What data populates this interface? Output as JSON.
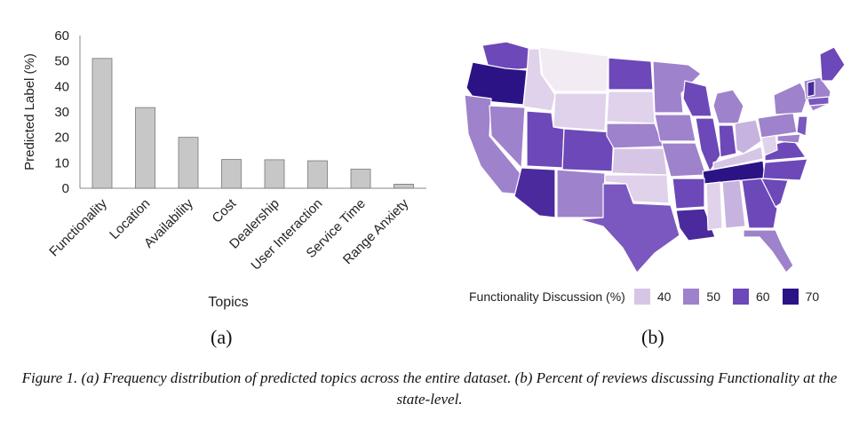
{
  "chart_data": [
    {
      "type": "bar",
      "ylabel": "Predicted Label (%)",
      "xlabel": "Topics",
      "ylim": [
        0,
        60
      ],
      "yticks": [
        0,
        10,
        20,
        30,
        40,
        50,
        60
      ],
      "categories": [
        "Functionality",
        "Location",
        "Availability",
        "Cost",
        "Dealership",
        "User Interaction",
        "Service Time",
        "Range Anxiety"
      ],
      "values": [
        51,
        31.7,
        20,
        11.3,
        11.2,
        10.8,
        7.5,
        1.6
      ],
      "bar_color": "#c7c7c7"
    },
    {
      "type": "heatmap",
      "legend_title": "Functionality Discussion (%)",
      "legend": [
        {
          "value": "40",
          "color": "#d7c5e6"
        },
        {
          "value": "50",
          "color": "#9e82cc"
        },
        {
          "value": "60",
          "color": "#6d48b8"
        },
        {
          "value": "70",
          "color": "#2b1386"
        }
      ]
    }
  ],
  "panels": {
    "a_label": "(a)",
    "b_label": "(b)"
  },
  "caption": "Figure 1. (a) Frequency distribution of predicted topics across the entire dataset. (b) Percent of reviews discussing Functionality at the state-level."
}
